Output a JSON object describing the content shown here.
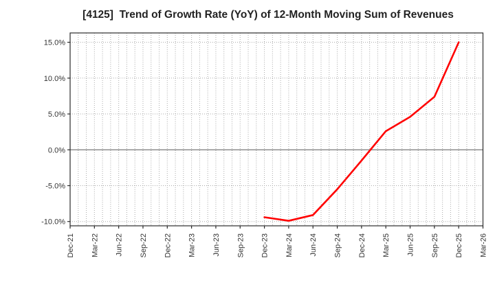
{
  "title": "[4125]  Trend of Growth Rate (YoY) of 12-Month Moving Sum of Revenues",
  "chart_data": {
    "type": "line",
    "title": "[4125]  Trend of Growth Rate (YoY) of 12-Month Moving Sum of Revenues",
    "xlabel": "",
    "ylabel": "",
    "y_ticks": [
      -10,
      -5,
      0,
      5,
      10,
      15
    ],
    "y_tick_labels": [
      "-10.0%",
      "-5.0%",
      "0.0%",
      "5.0%",
      "10.0%",
      "15.0%"
    ],
    "ylim": [
      -10.6,
      16.3
    ],
    "x_tick_labels": [
      "Dec-21",
      "Mar-22",
      "Jun-22",
      "Sep-22",
      "Dec-22",
      "Mar-23",
      "Jun-23",
      "Sep-23",
      "Dec-23",
      "Mar-24",
      "Jun-24",
      "Sep-24",
      "Dec-24",
      "Mar-25",
      "Jun-25",
      "Sep-25",
      "Dec-25",
      "Mar-26"
    ],
    "x_axis": {
      "start_month": "Dec-21",
      "end_month": "Mar-26",
      "total_months": 51,
      "months_per_labeled_tick": 3,
      "minor_gridlines": "monthly",
      "label_rotation_deg": 90
    },
    "grid": {
      "style": "dotted",
      "gridline_color": "#aaaaaa",
      "zero_line": true,
      "zero_line_color": "#777777"
    },
    "legend": "none",
    "series": [
      {
        "name": "Growth Rate (YoY) of 12-Month Moving Sum of Revenues",
        "color": "#ff0000",
        "points": [
          {
            "label": "Dec-23",
            "month_index": 24,
            "value": -9.4
          },
          {
            "label": "Mar-24",
            "month_index": 27,
            "value": -9.9
          },
          {
            "label": "Jun-24",
            "month_index": 30,
            "value": -9.1
          },
          {
            "label": "Sep-24",
            "month_index": 33,
            "value": -5.5
          },
          {
            "label": "Dec-24",
            "month_index": 36,
            "value": -1.5
          },
          {
            "label": "Mar-25",
            "month_index": 39,
            "value": 2.6
          },
          {
            "label": "Jun-25",
            "month_index": 42,
            "value": 4.6
          },
          {
            "label": "Sep-25",
            "month_index": 45,
            "value": 7.4
          },
          {
            "label": "Dec-25",
            "month_index": 48,
            "value": 15.0
          }
        ]
      }
    ],
    "colors": {
      "line": "#ff0000",
      "spine": "#2b2b2b",
      "grid": "#aaaaaa",
      "zero_line": "#777777",
      "title_text": "#222222",
      "tick_text": "#333333",
      "background": "#ffffff"
    }
  }
}
